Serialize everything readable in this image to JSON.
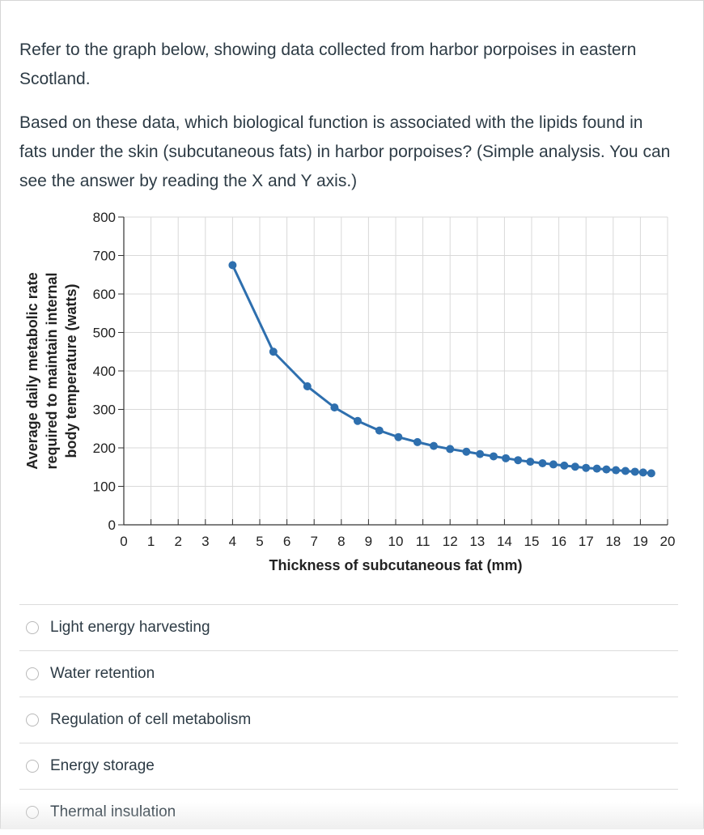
{
  "question": {
    "paragraph1": "Refer to the graph below, showing data collected from harbor porpoises in eastern Scotland.",
    "paragraph2": "Based on these data, which biological function is associated with the lipids found in fats under the skin (subcutaneous fats) in harbor porpoises? (Simple analysis.  You can see the answer by reading the X and Y axis.)"
  },
  "chart_data": {
    "type": "line",
    "title": "",
    "xlabel": "Thickness of subcutaneous fat (mm)",
    "ylabel_lines": [
      "Average daily metabolic rate",
      "required to maintain internal",
      "body temperature (watts)"
    ],
    "xlim": [
      0,
      20
    ],
    "ylim": [
      0,
      800
    ],
    "x_ticks": [
      0,
      1,
      2,
      3,
      4,
      5,
      6,
      7,
      8,
      9,
      10,
      11,
      12,
      13,
      14,
      15,
      16,
      17,
      18,
      19,
      20
    ],
    "y_ticks": [
      0,
      100,
      200,
      300,
      400,
      500,
      600,
      700,
      800
    ],
    "grid": true,
    "series_color": "#2e6fae",
    "x": [
      4,
      5.5,
      6.75,
      7.75,
      8.6,
      9.4,
      10.1,
      10.8,
      11.4,
      12,
      12.6,
      13.1,
      13.6,
      14.05,
      14.5,
      14.95,
      15.4,
      15.8,
      16.2,
      16.6,
      17,
      17.4,
      17.75,
      18.1,
      18.45,
      18.8,
      19.1,
      19.4
    ],
    "y": [
      675,
      450,
      360,
      305,
      270,
      245,
      228,
      215,
      205,
      197,
      190,
      184,
      178,
      173,
      168,
      164,
      160,
      157,
      154,
      151,
      148,
      146,
      144,
      142,
      140,
      138,
      136,
      134
    ]
  },
  "answers": [
    {
      "label": "Light energy harvesting"
    },
    {
      "label": "Water retention"
    },
    {
      "label": "Regulation of cell metabolism"
    },
    {
      "label": "Energy storage"
    },
    {
      "label": "Thermal insulation"
    }
  ]
}
